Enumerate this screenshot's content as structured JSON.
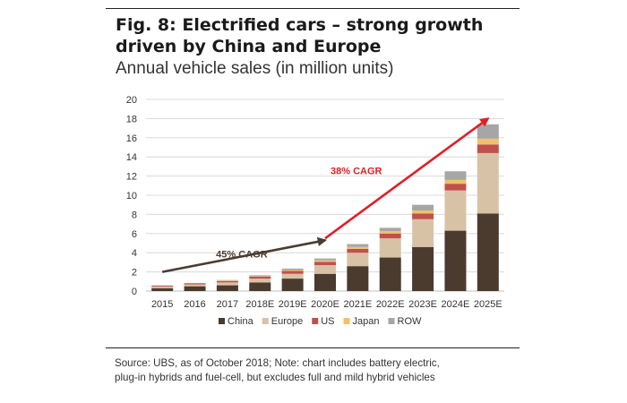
{
  "figure": {
    "title_line1": "Fig. 8: Electrified cars – strong growth",
    "title_line2": "driven by China and Europe",
    "subtitle": "Annual vehicle sales (in million units)",
    "footer_line1": "Source: UBS, as of October 2018; Note: chart includes battery electric,",
    "footer_line2": "plug-in hybrids and fuel-cell, but  excludes full and mild hybrid vehicles"
  },
  "colors": {
    "China": "#4b3a2e",
    "Europe": "#d8c2a6",
    "US": "#c0504d",
    "Japan": "#f2c165",
    "ROW": "#a6a6a6",
    "arrow_dark": "#4a3c30",
    "arrow_red": "#e01f26"
  },
  "chart_data": {
    "type": "bar",
    "stacked": true,
    "categories": [
      "2015",
      "2016",
      "2017",
      "2018E",
      "2019E",
      "2020E",
      "2021E",
      "2022E",
      "2023E",
      "2024E",
      "2025E"
    ],
    "series": [
      {
        "name": "China",
        "values": [
          0.3,
          0.5,
          0.6,
          0.9,
          1.3,
          1.8,
          2.6,
          3.5,
          4.6,
          6.3,
          8.1
        ]
      },
      {
        "name": "Europe",
        "values": [
          0.15,
          0.2,
          0.3,
          0.4,
          0.5,
          0.9,
          1.4,
          2.0,
          2.9,
          4.2,
          6.3
        ]
      },
      {
        "name": "US",
        "values": [
          0.1,
          0.1,
          0.15,
          0.2,
          0.3,
          0.35,
          0.4,
          0.5,
          0.6,
          0.7,
          0.9
        ]
      },
      {
        "name": "Japan",
        "values": [
          0.02,
          0.02,
          0.05,
          0.05,
          0.1,
          0.15,
          0.2,
          0.25,
          0.3,
          0.4,
          0.6
        ]
      },
      {
        "name": "ROW",
        "values": [
          0.03,
          0.03,
          0.05,
          0.1,
          0.15,
          0.2,
          0.3,
          0.35,
          0.6,
          0.9,
          1.5
        ]
      }
    ],
    "ylim": [
      0,
      20
    ],
    "yticks": [
      0,
      2,
      4,
      6,
      8,
      10,
      12,
      14,
      16,
      18,
      20
    ],
    "grid": true,
    "legend": "bottom",
    "annotations": [
      {
        "text": "45% CAGR",
        "color": "arrow_dark",
        "from_x": "2015",
        "from_y": 2.0,
        "to_x": "2020E",
        "to_y": 5.3
      },
      {
        "text": "38% CAGR",
        "color": "arrow_red",
        "from_x": "2020E",
        "from_y": 5.5,
        "to_x": "2025E",
        "to_y": 18.0
      }
    ]
  }
}
